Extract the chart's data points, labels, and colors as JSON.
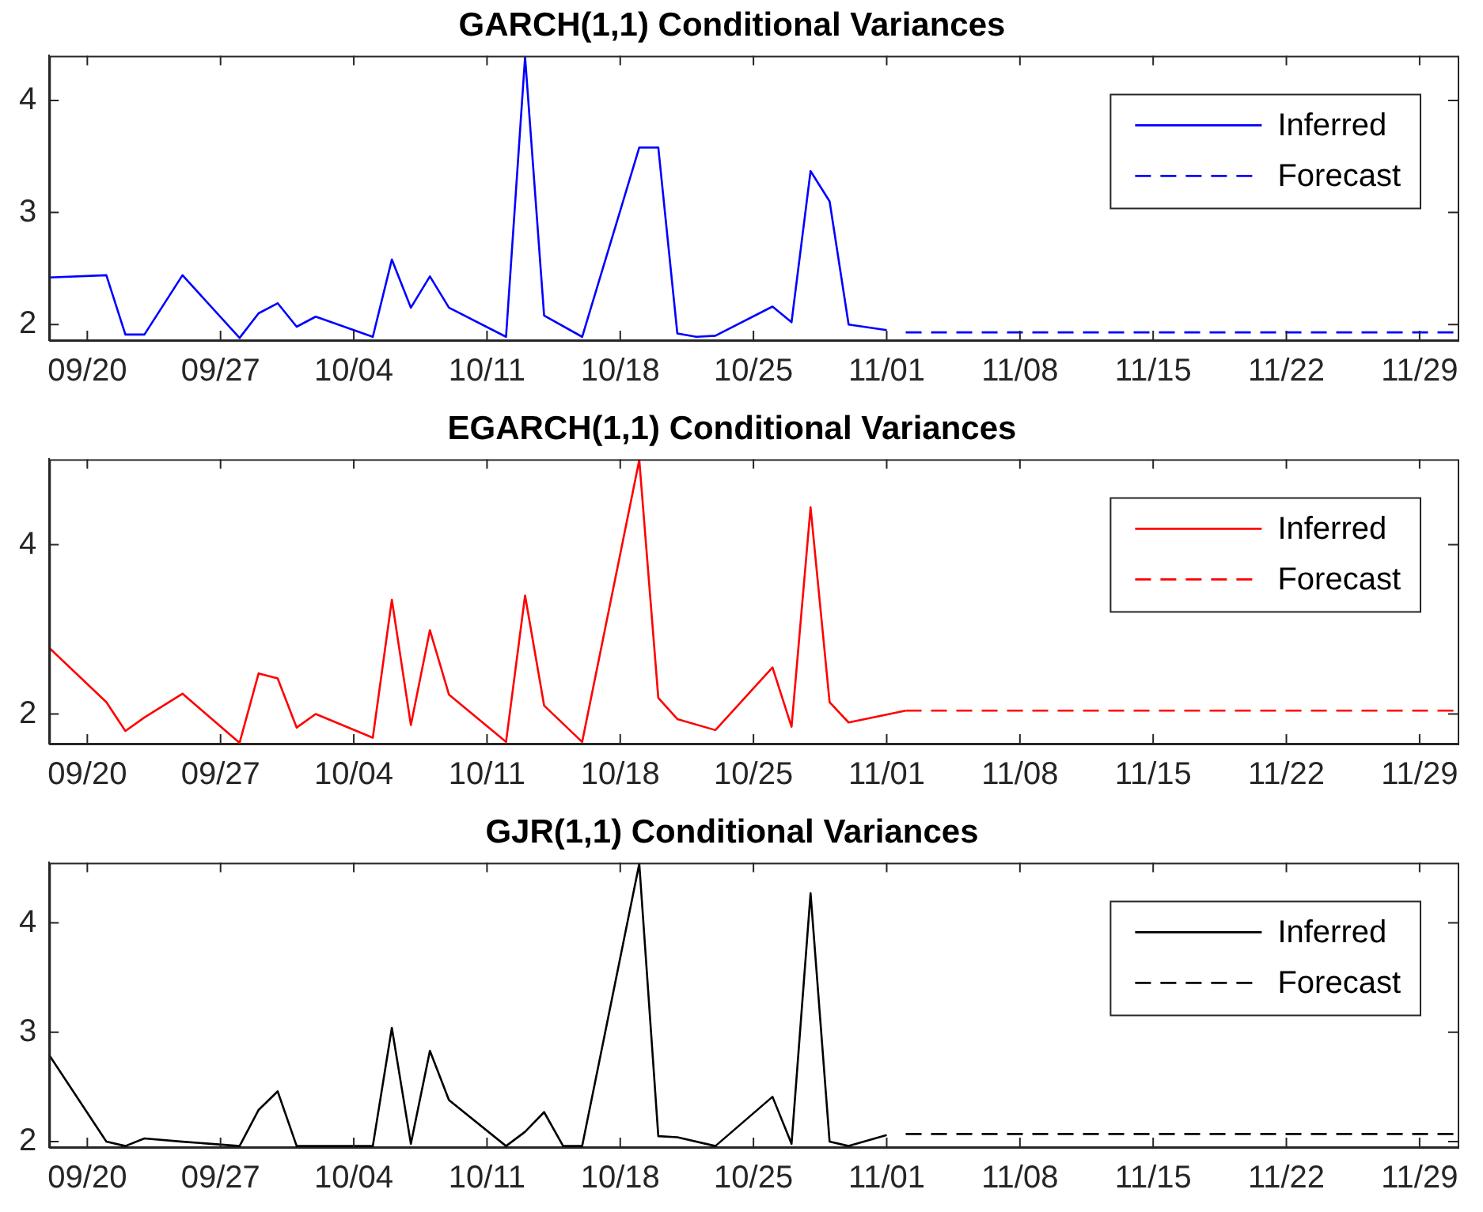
{
  "chart_data": [
    {
      "type": "line",
      "title": "GARCH(1,1) Conditional Variances",
      "legend": "top right",
      "grid": false,
      "marker": "none",
      "xlim": [
        "--09-18",
        "--12-01"
      ],
      "xticks": [
        {
          "value": "--09-20",
          "label": "09/20"
        },
        {
          "value": "--09-27",
          "label": "09/27"
        },
        {
          "value": "--10-04",
          "label": "10/04"
        },
        {
          "value": "--10-11",
          "label": "10/11"
        },
        {
          "value": "--10-18",
          "label": "10/18"
        },
        {
          "value": "--10-25",
          "label": "10/25"
        },
        {
          "value": "--11-01",
          "label": "11/01"
        },
        {
          "value": "--11-08",
          "label": "11/08"
        },
        {
          "value": "--11-15",
          "label": "11/15"
        },
        {
          "value": "--11-22",
          "label": "11/22"
        },
        {
          "value": "--11-29",
          "label": "11/29"
        }
      ],
      "ylim": [
        1.86,
        4.4
      ],
      "yticks": [
        2,
        3,
        4
      ],
      "series": [
        {
          "name": "Inferred",
          "color": "#0000ff",
          "line_style": "solid",
          "x": [
            "--09-18",
            "--09-21",
            "--09-22",
            "--09-23",
            "--09-25",
            "--09-28",
            "--09-29",
            "--09-30",
            "--10-01",
            "--10-02",
            "--10-05",
            "--10-06",
            "--10-07",
            "--10-08",
            "--10-09",
            "--10-12",
            "--10-13",
            "--10-14",
            "--10-16",
            "--10-19",
            "--10-20",
            "--10-21",
            "--10-22",
            "--10-23",
            "--10-26",
            "--10-27",
            "--10-28",
            "--10-29",
            "--10-30",
            "--11-01"
          ],
          "values": [
            2.42,
            2.44,
            1.91,
            1.91,
            2.44,
            1.88,
            2.1,
            2.19,
            1.98,
            2.07,
            1.89,
            2.58,
            2.15,
            2.43,
            2.15,
            1.89,
            4.39,
            2.08,
            1.89,
            3.58,
            3.58,
            1.92,
            1.89,
            1.9,
            2.16,
            2.02,
            3.37,
            3.1,
            2.0,
            1.95
          ]
        },
        {
          "name": "Forecast",
          "color": "#0000ff",
          "line_style": "dashed",
          "x": [
            "--11-02",
            "--12-01"
          ],
          "values": [
            1.93,
            1.93
          ]
        }
      ]
    },
    {
      "type": "line",
      "title": "EGARCH(1,1) Conditional Variances",
      "legend": "top right",
      "grid": false,
      "marker": "none",
      "xlim": [
        "--09-18",
        "--12-01"
      ],
      "xticks": [
        {
          "value": "--09-20",
          "label": "09/20"
        },
        {
          "value": "--09-27",
          "label": "09/27"
        },
        {
          "value": "--10-04",
          "label": "10/04"
        },
        {
          "value": "--10-11",
          "label": "10/11"
        },
        {
          "value": "--10-18",
          "label": "10/18"
        },
        {
          "value": "--10-25",
          "label": "10/25"
        },
        {
          "value": "--11-01",
          "label": "11/01"
        },
        {
          "value": "--11-08",
          "label": "11/08"
        },
        {
          "value": "--11-15",
          "label": "11/15"
        },
        {
          "value": "--11-22",
          "label": "11/22"
        },
        {
          "value": "--11-29",
          "label": "11/29"
        }
      ],
      "ylim": [
        1.65,
        5.01
      ],
      "yticks": [
        2,
        4
      ],
      "series": [
        {
          "name": "Inferred",
          "color": "#ff0000",
          "line_style": "solid",
          "x": [
            "--09-18",
            "--09-21",
            "--09-22",
            "--09-23",
            "--09-25",
            "--09-28",
            "--09-29",
            "--09-30",
            "--10-01",
            "--10-02",
            "--10-05",
            "--10-06",
            "--10-07",
            "--10-08",
            "--10-09",
            "--10-12",
            "--10-13",
            "--10-14",
            "--10-16",
            "--10-19",
            "--10-20",
            "--10-21",
            "--10-23",
            "--10-26",
            "--10-27",
            "--10-28",
            "--10-29",
            "--10-30",
            "--11-02"
          ],
          "values": [
            2.78,
            2.14,
            1.8,
            1.96,
            2.24,
            1.66,
            2.48,
            2.42,
            1.84,
            2.0,
            1.72,
            3.35,
            1.87,
            2.99,
            2.23,
            1.67,
            3.4,
            2.1,
            1.67,
            5.0,
            2.19,
            1.94,
            1.81,
            2.55,
            1.85,
            4.44,
            2.14,
            1.9,
            2.04
          ]
        },
        {
          "name": "Forecast",
          "color": "#ff0000",
          "line_style": "dashed",
          "x": [
            "--11-02",
            "--12-01"
          ],
          "values": [
            2.04,
            2.04
          ]
        }
      ]
    },
    {
      "type": "line",
      "title": "GJR(1,1) Conditional Variances",
      "legend": "top right",
      "grid": false,
      "marker": "none",
      "xlim": [
        "--09-18",
        "--12-01"
      ],
      "xticks": [
        {
          "value": "--09-20",
          "label": "09/20"
        },
        {
          "value": "--09-27",
          "label": "09/27"
        },
        {
          "value": "--10-04",
          "label": "10/04"
        },
        {
          "value": "--10-11",
          "label": "10/11"
        },
        {
          "value": "--10-18",
          "label": "10/18"
        },
        {
          "value": "--10-25",
          "label": "10/25"
        },
        {
          "value": "--11-01",
          "label": "11/01"
        },
        {
          "value": "--11-08",
          "label": "11/08"
        },
        {
          "value": "--11-15",
          "label": "11/15"
        },
        {
          "value": "--11-22",
          "label": "11/22"
        },
        {
          "value": "--11-29",
          "label": "11/29"
        }
      ],
      "ylim": [
        1.95,
        4.55
      ],
      "yticks": [
        2,
        3,
        4
      ],
      "series": [
        {
          "name": "Inferred",
          "color": "#000000",
          "line_style": "solid",
          "x": [
            "--09-18",
            "--09-21",
            "--09-22",
            "--09-23",
            "--09-25",
            "--09-28",
            "--09-29",
            "--09-30",
            "--10-01",
            "--10-05",
            "--10-06",
            "--10-07",
            "--10-08",
            "--10-09",
            "--10-12",
            "--10-13",
            "--10-14",
            "--10-15",
            "--10-16",
            "--10-19",
            "--10-20",
            "--10-21",
            "--10-23",
            "--10-26",
            "--10-27",
            "--10-28",
            "--10-29",
            "--10-30",
            "--11-01"
          ],
          "values": [
            2.79,
            2.0,
            1.96,
            2.03,
            2.0,
            1.96,
            2.29,
            2.46,
            1.96,
            1.96,
            3.04,
            1.98,
            2.83,
            2.38,
            1.96,
            2.09,
            2.27,
            1.96,
            1.96,
            4.54,
            2.05,
            2.04,
            1.96,
            2.41,
            1.98,
            4.27,
            2.0,
            1.96,
            2.06
          ]
        },
        {
          "name": "Forecast",
          "color": "#000000",
          "line_style": "dashed",
          "x": [
            "--11-02",
            "--12-01"
          ],
          "values": [
            2.07,
            2.07
          ]
        }
      ]
    }
  ]
}
